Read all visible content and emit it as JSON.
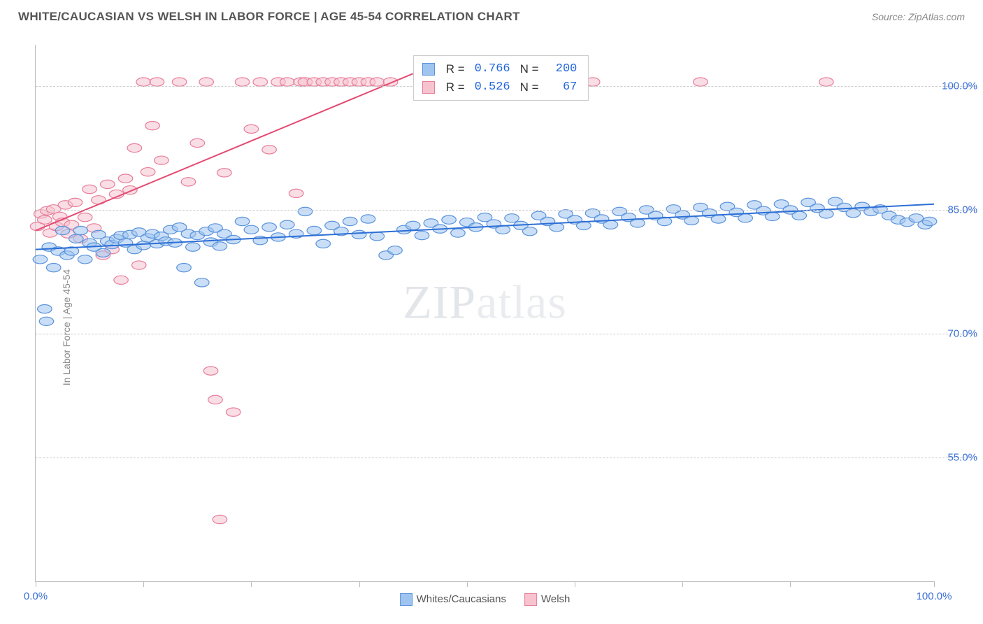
{
  "header": {
    "title": "WHITE/CAUCASIAN VS WELSH IN LABOR FORCE | AGE 45-54 CORRELATION CHART",
    "source": "Source: ZipAtlas.com"
  },
  "chart": {
    "type": "scatter",
    "y_axis_title": "In Labor Force | Age 45-54",
    "watermark_a": "ZIP",
    "watermark_b": "atlas",
    "background_color": "#ffffff",
    "grid_color": "#cccccc",
    "axis_color": "#bbbbbb",
    "xlim": [
      0,
      100
    ],
    "ylim": [
      40,
      105
    ],
    "xtick_positions": [
      0,
      12,
      24,
      36,
      48,
      60,
      72,
      84,
      100
    ],
    "xtick_labels": {
      "0": "0.0%",
      "100": "100.0%"
    },
    "xtick_label_color": "#3a6fd8",
    "ytick_positions": [
      55,
      70,
      85,
      100
    ],
    "ytick_labels": {
      "55": "55.0%",
      "70": "70.0%",
      "85": "85.0%",
      "100": "100.0%"
    },
    "ytick_label_color": "#3a6fd8",
    "marker_radius": 8,
    "marker_opacity": 0.55,
    "line_width": 2,
    "series": [
      {
        "id": "white",
        "label": "Whites/Caucasians",
        "color_fill": "#9fc4f0",
        "color_stroke": "#5b93db",
        "trend_color": "#2d6fd6",
        "trend": {
          "x1": 0,
          "y1": 80.2,
          "x2": 100,
          "y2": 85.7
        },
        "stats": {
          "R": "0.766",
          "N": "200"
        },
        "points": [
          [
            0.5,
            79
          ],
          [
            1,
            73
          ],
          [
            1.2,
            71.5
          ],
          [
            1.5,
            80.5
          ],
          [
            2,
            78
          ],
          [
            2.5,
            80
          ],
          [
            3,
            82.5
          ],
          [
            3.5,
            79.5
          ],
          [
            4,
            80
          ],
          [
            4.5,
            81.5
          ],
          [
            5,
            82.5
          ],
          [
            5.5,
            79
          ],
          [
            6,
            81
          ],
          [
            6.5,
            80.5
          ],
          [
            7,
            82
          ],
          [
            7.5,
            79.8
          ],
          [
            8,
            81.2
          ],
          [
            8.5,
            80.8
          ],
          [
            9,
            81.5
          ],
          [
            9.5,
            81.9
          ],
          [
            10,
            81
          ],
          [
            10.5,
            82
          ],
          [
            11,
            80.2
          ],
          [
            11.5,
            82.3
          ],
          [
            12,
            80.7
          ],
          [
            12.5,
            81.6
          ],
          [
            13,
            82.1
          ],
          [
            13.5,
            80.9
          ],
          [
            14,
            81.8
          ],
          [
            14.5,
            81.2
          ],
          [
            15,
            82.6
          ],
          [
            15.5,
            81
          ],
          [
            16,
            82.9
          ],
          [
            16.5,
            78
          ],
          [
            17,
            82.1
          ],
          [
            17.5,
            80.5
          ],
          [
            18,
            81.9
          ],
          [
            18.5,
            76.2
          ],
          [
            19,
            82.4
          ],
          [
            19.5,
            81.1
          ],
          [
            20,
            82.8
          ],
          [
            20.5,
            80.6
          ],
          [
            21,
            82.1
          ],
          [
            22,
            81.4
          ],
          [
            23,
            83.6
          ],
          [
            24,
            82.6
          ],
          [
            25,
            81.3
          ],
          [
            26,
            82.9
          ],
          [
            27,
            81.7
          ],
          [
            28,
            83.2
          ],
          [
            29,
            82.1
          ],
          [
            30,
            84.8
          ],
          [
            31,
            82.5
          ],
          [
            32,
            80.9
          ],
          [
            33,
            83.1
          ],
          [
            34,
            82.4
          ],
          [
            35,
            83.6
          ],
          [
            36,
            82
          ],
          [
            37,
            83.9
          ],
          [
            38,
            81.8
          ],
          [
            39,
            79.5
          ],
          [
            40,
            80.1
          ],
          [
            41,
            82.6
          ],
          [
            42,
            83.1
          ],
          [
            43,
            81.9
          ],
          [
            44,
            83.4
          ],
          [
            45,
            82.7
          ],
          [
            46,
            83.8
          ],
          [
            47,
            82.2
          ],
          [
            48,
            83.5
          ],
          [
            49,
            82.9
          ],
          [
            50,
            84.1
          ],
          [
            51,
            83.3
          ],
          [
            52,
            82.6
          ],
          [
            53,
            84
          ],
          [
            54,
            83.1
          ],
          [
            55,
            82.4
          ],
          [
            56,
            84.3
          ],
          [
            57,
            83.6
          ],
          [
            58,
            82.9
          ],
          [
            59,
            84.5
          ],
          [
            60,
            83.8
          ],
          [
            61,
            83.1
          ],
          [
            62,
            84.6
          ],
          [
            63,
            83.9
          ],
          [
            64,
            83.2
          ],
          [
            65,
            84.8
          ],
          [
            66,
            84.1
          ],
          [
            67,
            83.4
          ],
          [
            68,
            85
          ],
          [
            69,
            84.3
          ],
          [
            70,
            83.6
          ],
          [
            71,
            85.1
          ],
          [
            72,
            84.4
          ],
          [
            73,
            83.7
          ],
          [
            74,
            85.3
          ],
          [
            75,
            84.6
          ],
          [
            76,
            83.9
          ],
          [
            77,
            85.4
          ],
          [
            78,
            84.7
          ],
          [
            79,
            84
          ],
          [
            80,
            85.6
          ],
          [
            81,
            84.9
          ],
          [
            82,
            84.2
          ],
          [
            83,
            85.7
          ],
          [
            84,
            85
          ],
          [
            85,
            84.3
          ],
          [
            86,
            85.9
          ],
          [
            87,
            85.2
          ],
          [
            88,
            84.5
          ],
          [
            89,
            86
          ],
          [
            90,
            85.3
          ],
          [
            91,
            84.6
          ],
          [
            92,
            85.4
          ],
          [
            93,
            84.8
          ],
          [
            94,
            85.1
          ],
          [
            95,
            84.3
          ],
          [
            96,
            83.8
          ],
          [
            97,
            83.5
          ],
          [
            98,
            84
          ],
          [
            99,
            83.2
          ],
          [
            99.5,
            83.6
          ]
        ]
      },
      {
        "id": "welsh",
        "label": "Welsh",
        "color_fill": "#f6c3cf",
        "color_stroke": "#e77f9a",
        "trend_color": "#e34b73",
        "trend": {
          "x1": 0,
          "y1": 82.5,
          "x2": 42,
          "y2": 101.5
        },
        "stats": {
          "R": "0.526",
          "N": "67"
        },
        "points": [
          [
            0.2,
            83
          ],
          [
            0.6,
            84.5
          ],
          [
            1,
            83.8
          ],
          [
            1.3,
            84.9
          ],
          [
            1.6,
            82.2
          ],
          [
            2,
            85.1
          ],
          [
            2.3,
            83
          ],
          [
            2.7,
            84.2
          ],
          [
            3,
            83.5
          ],
          [
            3.3,
            85.6
          ],
          [
            3.6,
            82.1
          ],
          [
            4,
            83.2
          ],
          [
            4.4,
            85.9
          ],
          [
            5,
            81.5
          ],
          [
            5.5,
            84.1
          ],
          [
            6,
            87.5
          ],
          [
            6.5,
            82.8
          ],
          [
            7,
            86.2
          ],
          [
            7.5,
            79.5
          ],
          [
            8,
            88.1
          ],
          [
            8.5,
            80.2
          ],
          [
            9,
            86.9
          ],
          [
            9.5,
            76.5
          ],
          [
            10,
            88.8
          ],
          [
            10.5,
            87.4
          ],
          [
            11,
            92.5
          ],
          [
            11.5,
            78.3
          ],
          [
            12,
            100.5
          ],
          [
            12.5,
            89.6
          ],
          [
            13,
            95.2
          ],
          [
            13.5,
            100.5
          ],
          [
            14,
            91
          ],
          [
            16,
            100.5
          ],
          [
            17,
            88.4
          ],
          [
            18,
            93.1
          ],
          [
            19,
            100.5
          ],
          [
            19.5,
            65.5
          ],
          [
            20,
            62
          ],
          [
            20.5,
            47.5
          ],
          [
            21,
            89.5
          ],
          [
            22,
            60.5
          ],
          [
            23,
            100.5
          ],
          [
            24,
            94.8
          ],
          [
            25,
            100.5
          ],
          [
            26,
            92.3
          ],
          [
            27,
            100.5
          ],
          [
            28,
            100.5
          ],
          [
            29,
            87
          ],
          [
            29.5,
            100.5
          ],
          [
            30,
            100.5
          ],
          [
            31,
            100.5
          ],
          [
            32,
            100.5
          ],
          [
            33,
            100.5
          ],
          [
            34,
            100.5
          ],
          [
            35,
            100.5
          ],
          [
            36,
            100.5
          ],
          [
            37,
            100.5
          ],
          [
            38,
            100.5
          ],
          [
            39.5,
            100.5
          ],
          [
            44,
            100.5
          ],
          [
            48,
            100.5
          ],
          [
            52,
            100.5
          ],
          [
            62,
            100.5
          ],
          [
            74,
            100.5
          ],
          [
            88,
            100.5
          ]
        ]
      }
    ],
    "stats_box": {
      "left_pct": 42,
      "top_pct": 2,
      "R_label": "R =",
      "N_label": "N ="
    },
    "legend_bottom": true
  }
}
